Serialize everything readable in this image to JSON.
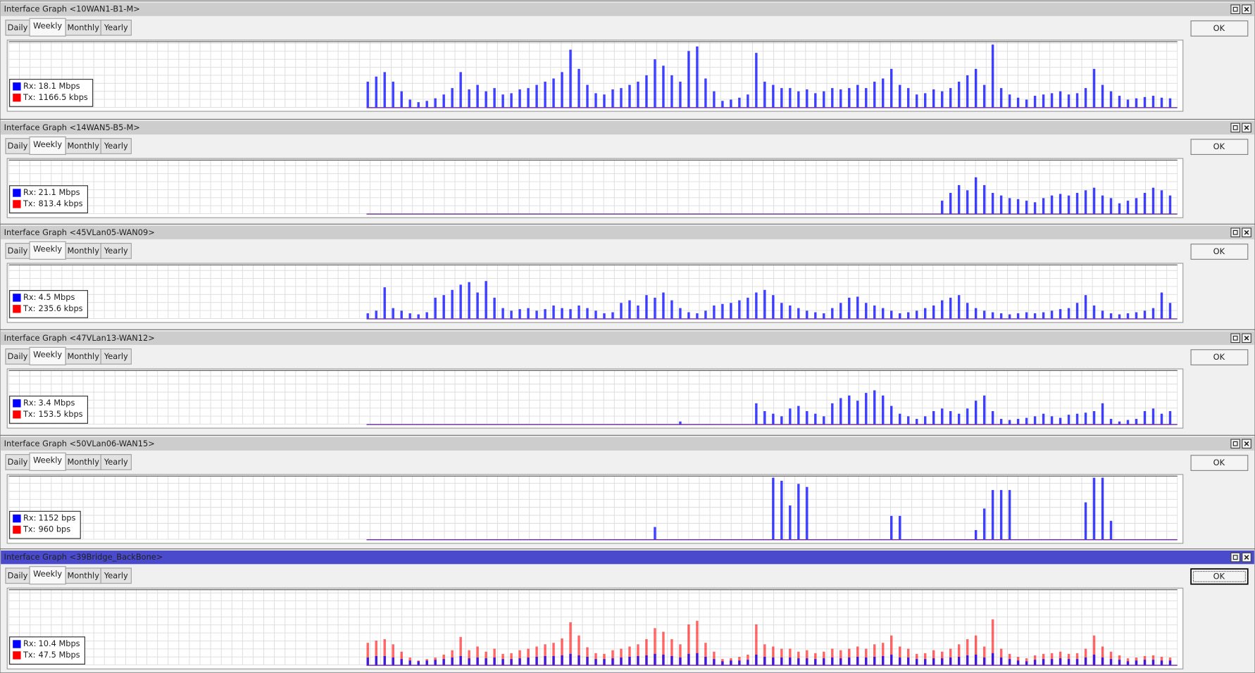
{
  "windows": [
    {
      "title": "Interface Graph <10WAN1-B1-M>",
      "active": false,
      "tabs": [
        "Daily",
        "Weekly",
        "Monthly",
        "Yearly"
      ],
      "ok": "OK",
      "legend": [
        {
          "label": "Rx:",
          "value": "18.1 Mbps",
          "color": "#0000ff"
        },
        {
          "label": "Tx:",
          "value": "1166.5 kbps",
          "color": "#ff0000"
        }
      ],
      "graph": {
        "type": "bar",
        "ylim": [
          0,
          100
        ],
        "series": [
          {
            "values": [
              40,
              48,
              55,
              40,
              25,
              12,
              8,
              10,
              14,
              20,
              30,
              55,
              28,
              35,
              25,
              30,
              20,
              22,
              28,
              30,
              35,
              40,
              45,
              55,
              90,
              60,
              35,
              22,
              20,
              28,
              30,
              35,
              40,
              50,
              75,
              65,
              50,
              40,
              88,
              95,
              45,
              25,
              10,
              12,
              15,
              20,
              85,
              40,
              35,
              30,
              30,
              25,
              28,
              22,
              25,
              30,
              28,
              30,
              35,
              30,
              40,
              45,
              60,
              35,
              30,
              20,
              22,
              28,
              25,
              30,
              40,
              50,
              60,
              35,
              98,
              30,
              20,
              15,
              12,
              18,
              20,
              22,
              25,
              20,
              22,
              30,
              60,
              35,
              25,
              18,
              12,
              14,
              16,
              18,
              15,
              14
            ]
          }
        ]
      }
    },
    {
      "title": "Interface Graph <14WAN5-B5-M>",
      "active": false,
      "tabs": [
        "Daily",
        "Weekly",
        "Monthly",
        "Yearly"
      ],
      "ok": "OK",
      "legend": [
        {
          "label": "Rx:",
          "value": "21.1 Mbps",
          "color": "#0000ff"
        },
        {
          "label": "Tx:",
          "value": "813.4 kbps",
          "color": "#ff0000"
        }
      ],
      "graph": {
        "type": "bar",
        "ylim": [
          0,
          100
        ],
        "series": [
          {
            "values": [
              0,
              0,
              0,
              0,
              0,
              0,
              0,
              0,
              0,
              0,
              0,
              0,
              0,
              0,
              0,
              0,
              0,
              0,
              0,
              0,
              0,
              0,
              0,
              0,
              0,
              0,
              0,
              0,
              0,
              0,
              0,
              0,
              0,
              0,
              0,
              0,
              0,
              0,
              0,
              0,
              0,
              0,
              0,
              0,
              0,
              0,
              0,
              0,
              0,
              0,
              0,
              0,
              0,
              0,
              0,
              0,
              0,
              0,
              0,
              0,
              0,
              0,
              0,
              0,
              0,
              0,
              0,
              0,
              25,
              40,
              55,
              45,
              70,
              55,
              40,
              35,
              30,
              28,
              25,
              22,
              30,
              35,
              38,
              35,
              40,
              45,
              50,
              35,
              30,
              20,
              25,
              30,
              40,
              50,
              45,
              35
            ]
          }
        ]
      }
    },
    {
      "title": "Interface Graph <45VLan05-WAN09>",
      "active": false,
      "tabs": [
        "Daily",
        "Weekly",
        "Monthly",
        "Yearly"
      ],
      "ok": "OK",
      "legend": [
        {
          "label": "Rx:",
          "value": "4.5 Mbps",
          "color": "#0000ff"
        },
        {
          "label": "Tx:",
          "value": "235.6 kbps",
          "color": "#ff0000"
        }
      ],
      "graph": {
        "type": "bar",
        "ylim": [
          0,
          100
        ],
        "series": [
          {
            "values": [
              10,
              15,
              60,
              20,
              15,
              10,
              8,
              12,
              40,
              45,
              55,
              65,
              70,
              50,
              72,
              40,
              20,
              15,
              18,
              20,
              15,
              18,
              25,
              20,
              18,
              25,
              20,
              15,
              10,
              12,
              30,
              35,
              25,
              45,
              40,
              50,
              35,
              20,
              12,
              10,
              15,
              25,
              28,
              30,
              35,
              40,
              50,
              55,
              45,
              30,
              25,
              20,
              15,
              12,
              10,
              20,
              30,
              40,
              42,
              30,
              25,
              20,
              15,
              10,
              12,
              15,
              20,
              25,
              35,
              40,
              45,
              30,
              20,
              15,
              12,
              10,
              8,
              10,
              12,
              10,
              12,
              15,
              18,
              20,
              30,
              45,
              25,
              15,
              10,
              8,
              10,
              12,
              15,
              20,
              50,
              30
            ]
          }
        ]
      }
    },
    {
      "title": "Interface Graph <47VLan13-WAN12>",
      "active": false,
      "tabs": [
        "Daily",
        "Weekly",
        "Monthly",
        "Yearly"
      ],
      "ok": "OK",
      "legend": [
        {
          "label": "Rx:",
          "value": "3.4 Mbps",
          "color": "#0000ff"
        },
        {
          "label": "Tx:",
          "value": "153.5 kbps",
          "color": "#ff0000"
        }
      ],
      "graph": {
        "type": "bar",
        "ylim": [
          0,
          100
        ],
        "series": [
          {
            "values": [
              0,
              0,
              0,
              0,
              0,
              0,
              0,
              0,
              0,
              0,
              0,
              0,
              0,
              0,
              0,
              0,
              0,
              0,
              0,
              0,
              0,
              0,
              0,
              0,
              0,
              0,
              0,
              0,
              0,
              0,
              0,
              0,
              0,
              0,
              0,
              0,
              0,
              5,
              0,
              0,
              0,
              0,
              0,
              0,
              0,
              0,
              40,
              25,
              20,
              15,
              30,
              35,
              25,
              20,
              15,
              40,
              50,
              55,
              45,
              60,
              65,
              55,
              35,
              20,
              15,
              10,
              15,
              25,
              30,
              25,
              20,
              30,
              45,
              55,
              25,
              10,
              8,
              10,
              12,
              15,
              20,
              15,
              12,
              18,
              20,
              22,
              25,
              40,
              10,
              5,
              8,
              10,
              25,
              30,
              20,
              25
            ]
          }
        ]
      }
    },
    {
      "title": "Interface Graph <50VLan06-WAN15>",
      "active": false,
      "tabs": [
        "Daily",
        "Weekly",
        "Monthly",
        "Yearly"
      ],
      "ok": "OK",
      "legend": [
        {
          "label": "Rx:",
          "value": "1152 bps",
          "color": "#0000ff"
        },
        {
          "label": "Tx:",
          "value": "960 bps",
          "color": "#ff0000"
        }
      ],
      "graph": {
        "type": "bar",
        "ylim": [
          0,
          100
        ],
        "series": [
          {
            "values": [
              0,
              0,
              0,
              0,
              0,
              0,
              0,
              0,
              0,
              0,
              0,
              0,
              0,
              0,
              0,
              0,
              0,
              0,
              0,
              0,
              0,
              0,
              0,
              0,
              0,
              0,
              0,
              0,
              0,
              0,
              0,
              0,
              0,
              0,
              20,
              0,
              0,
              0,
              0,
              0,
              0,
              0,
              0,
              0,
              0,
              0,
              0,
              0,
              100,
              95,
              55,
              90,
              85,
              0,
              0,
              0,
              0,
              0,
              0,
              0,
              0,
              0,
              38,
              38,
              0,
              0,
              0,
              0,
              0,
              0,
              0,
              0,
              15,
              50,
              80,
              80,
              80,
              0,
              0,
              0,
              0,
              0,
              0,
              0,
              0,
              60,
              100,
              100,
              30,
              0,
              0,
              0,
              0,
              0,
              0,
              0
            ]
          }
        ]
      }
    },
    {
      "title": "Interface Graph <39Bridge_BackBone>",
      "active": true,
      "tabs": [
        "Daily",
        "Weekly",
        "Monthly",
        "Yearly"
      ],
      "ok": "OK",
      "legend": [
        {
          "label": "Rx:",
          "value": "10.4 Mbps",
          "color": "#0000ff"
        },
        {
          "label": "Tx:",
          "value": "47.5 Mbps",
          "color": "#ff0000"
        }
      ],
      "graph": {
        "type": "bar",
        "ylim": [
          0,
          100
        ],
        "series": [
          {
            "values": [
              10,
              12,
              12,
              10,
              8,
              6,
              5,
              6,
              7,
              8,
              10,
              12,
              9,
              10,
              9,
              10,
              8,
              8,
              9,
              10,
              11,
              12,
              12,
              13,
              15,
              13,
              11,
              8,
              8,
              9,
              10,
              11,
              12,
              13,
              15,
              14,
              12,
              10,
              15,
              16,
              11,
              8,
              5,
              6,
              6,
              7,
              14,
              11,
              10,
              10,
              10,
              9,
              9,
              8,
              9,
              10,
              9,
              10,
              11,
              10,
              11,
              12,
              14,
              10,
              10,
              8,
              8,
              9,
              9,
              10,
              11,
              13,
              14,
              10,
              16,
              10,
              8,
              6,
              5,
              7,
              8,
              8,
              9,
              8,
              8,
              10,
              14,
              10,
              8,
              7,
              5,
              6,
              7,
              7,
              6,
              6
            ]
          },
          {
            "values": [
              30,
              33,
              35,
              28,
              18,
              10,
              6,
              8,
              10,
              14,
              20,
              38,
              20,
              25,
              18,
              22,
              15,
              16,
              20,
              22,
              25,
              28,
              30,
              36,
              58,
              40,
              24,
              16,
              15,
              20,
              22,
              25,
              28,
              35,
              50,
              45,
              35,
              28,
              55,
              60,
              30,
              18,
              8,
              9,
              11,
              14,
              55,
              28,
              25,
              22,
              22,
              18,
              20,
              16,
              18,
              22,
              20,
              22,
              25,
              22,
              28,
              30,
              40,
              25,
              22,
              15,
              16,
              20,
              18,
              22,
              28,
              35,
              40,
              25,
              62,
              22,
              15,
              11,
              9,
              13,
              15,
              16,
              18,
              15,
              16,
              22,
              40,
              25,
              18,
              13,
              9,
              10,
              12,
              13,
              11,
              10
            ]
          }
        ]
      }
    }
  ]
}
